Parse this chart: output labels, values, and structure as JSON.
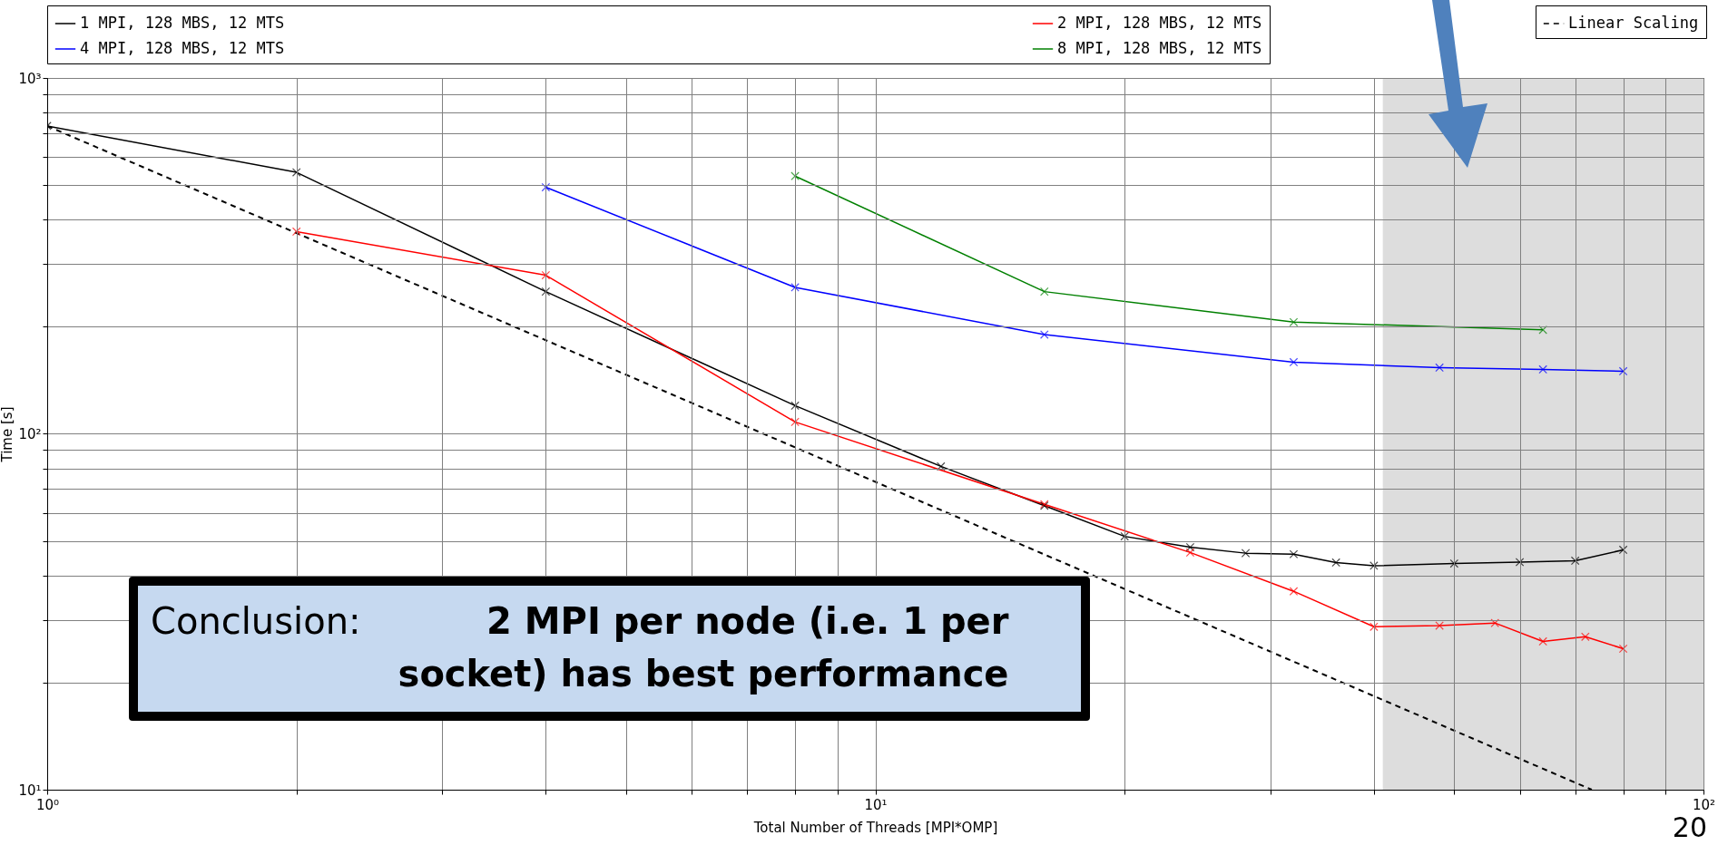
{
  "chart_data": {
    "type": "line",
    "xlabel": "Total Number of Threads [MPI*OMP]",
    "ylabel": "Time [s]",
    "log": "xy",
    "grid": true,
    "legend": "top",
    "marker": "cross",
    "line_style": "solid",
    "xlim": [
      1,
      100
    ],
    "ylim": [
      10,
      1000
    ],
    "xticks": [
      {
        "value": 1,
        "label": "10⁰"
      },
      {
        "value": 2,
        "label": null
      },
      {
        "value": 3,
        "label": null
      },
      {
        "value": 4,
        "label": null
      },
      {
        "value": 5,
        "label": null
      },
      {
        "value": 6,
        "label": null
      },
      {
        "value": 7,
        "label": null
      },
      {
        "value": 8,
        "label": null
      },
      {
        "value": 9,
        "label": null
      },
      {
        "value": 10,
        "label": "10¹"
      },
      {
        "value": 20,
        "label": null
      },
      {
        "value": 30,
        "label": null
      },
      {
        "value": 40,
        "label": null
      },
      {
        "value": 50,
        "label": null
      },
      {
        "value": 60,
        "label": null
      },
      {
        "value": 70,
        "label": null
      },
      {
        "value": 80,
        "label": null
      },
      {
        "value": 90,
        "label": null
      },
      {
        "value": 100,
        "label": "10²"
      }
    ],
    "yticks": [
      {
        "value": 10,
        "label": "10¹"
      },
      {
        "value": 20,
        "label": null
      },
      {
        "value": 30,
        "label": null
      },
      {
        "value": 40,
        "label": null
      },
      {
        "value": 50,
        "label": null
      },
      {
        "value": 60,
        "label": null
      },
      {
        "value": 70,
        "label": null
      },
      {
        "value": 80,
        "label": null
      },
      {
        "value": 90,
        "label": null
      },
      {
        "value": 100,
        "label": "10²"
      },
      {
        "value": 200,
        "label": null
      },
      {
        "value": 300,
        "label": null
      },
      {
        "value": 400,
        "label": null
      },
      {
        "value": 500,
        "label": null
      },
      {
        "value": 600,
        "label": null
      },
      {
        "value": 700,
        "label": null
      },
      {
        "value": 800,
        "label": null
      },
      {
        "value": 900,
        "label": null
      },
      {
        "value": 1000,
        "label": "10³"
      }
    ],
    "series": [
      {
        "name": "1 MPI, 128 MBS, 12 MTS",
        "color": "#000000",
        "x": [
          1,
          2,
          4,
          8,
          12,
          16,
          20,
          24,
          28,
          32,
          36,
          40,
          50,
          60,
          70,
          80
        ],
        "values": [
          733,
          543,
          251,
          120,
          81,
          62.8,
          51.5,
          48,
          46.2,
          45.9,
          43.5,
          42.6,
          43.2,
          43.6,
          44,
          47.2
        ]
      },
      {
        "name": "2 MPI, 128 MBS, 12 MTS",
        "color": "#ff0000",
        "x": [
          2,
          4,
          8,
          16,
          24,
          32,
          40,
          48,
          56,
          64,
          72,
          80
        ],
        "values": [
          370,
          279,
          108,
          63.4,
          46.4,
          36.1,
          28.7,
          28.9,
          29.4,
          26.1,
          26.9,
          24.9
        ]
      },
      {
        "name": "4 MPI, 128 MBS, 12 MTS",
        "color": "#0000ff",
        "x": [
          4,
          8,
          16,
          32,
          48,
          64,
          80
        ],
        "values": [
          493,
          258,
          190,
          159,
          153.5,
          151.7,
          150
        ]
      },
      {
        "name": "8 MPI, 128 MBS, 12 MTS",
        "color": "#008000",
        "x": [
          8,
          16,
          32,
          64
        ],
        "values": [
          530,
          251,
          206,
          196
        ]
      },
      {
        "name": "Linear Scaling",
        "color": "#000000",
        "type": "line",
        "marker": "none",
        "line_style": "dashed",
        "x": [
          1,
          73.3
        ],
        "values": [
          733,
          10
        ]
      }
    ],
    "bands": [
      {
        "axis": "x",
        "from": 41,
        "to": 100,
        "color": "#dddddd"
      }
    ],
    "annotations": [
      "Conclusion:",
      "2 MPI per node (i.e. 1 per socket) has best performance",
      "20"
    ]
  }
}
